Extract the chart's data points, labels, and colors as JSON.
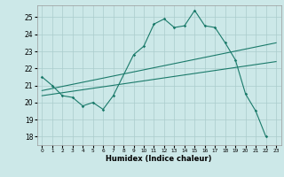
{
  "title": "",
  "xlabel": "Humidex (Indice chaleur)",
  "ylabel": "",
  "background_color": "#cce8e8",
  "grid_color": "#aacccc",
  "line_color": "#1a7a6a",
  "xlim": [
    -0.5,
    23.5
  ],
  "ylim": [
    17.5,
    25.7
  ],
  "yticks": [
    18,
    19,
    20,
    21,
    22,
    23,
    24,
    25
  ],
  "xticks": [
    0,
    1,
    2,
    3,
    4,
    5,
    6,
    7,
    8,
    9,
    10,
    11,
    12,
    13,
    14,
    15,
    16,
    17,
    18,
    19,
    20,
    21,
    22,
    23
  ],
  "s1x": [
    0,
    1,
    2,
    3,
    4,
    5,
    6,
    7,
    9,
    10,
    11,
    12,
    13,
    14,
    15,
    16,
    17,
    18,
    19,
    20,
    21,
    22
  ],
  "s1y": [
    21.5,
    21.0,
    20.4,
    20.3,
    19.8,
    20.0,
    19.6,
    20.4,
    22.8,
    23.3,
    24.6,
    24.9,
    24.4,
    24.5,
    25.4,
    24.5,
    24.4,
    23.5,
    22.5,
    20.5,
    19.5,
    18.0
  ],
  "s2x": [
    0,
    23
  ],
  "s2y": [
    20.7,
    23.5
  ],
  "s3x": [
    0,
    23
  ],
  "s3y": [
    20.4,
    22.4
  ]
}
